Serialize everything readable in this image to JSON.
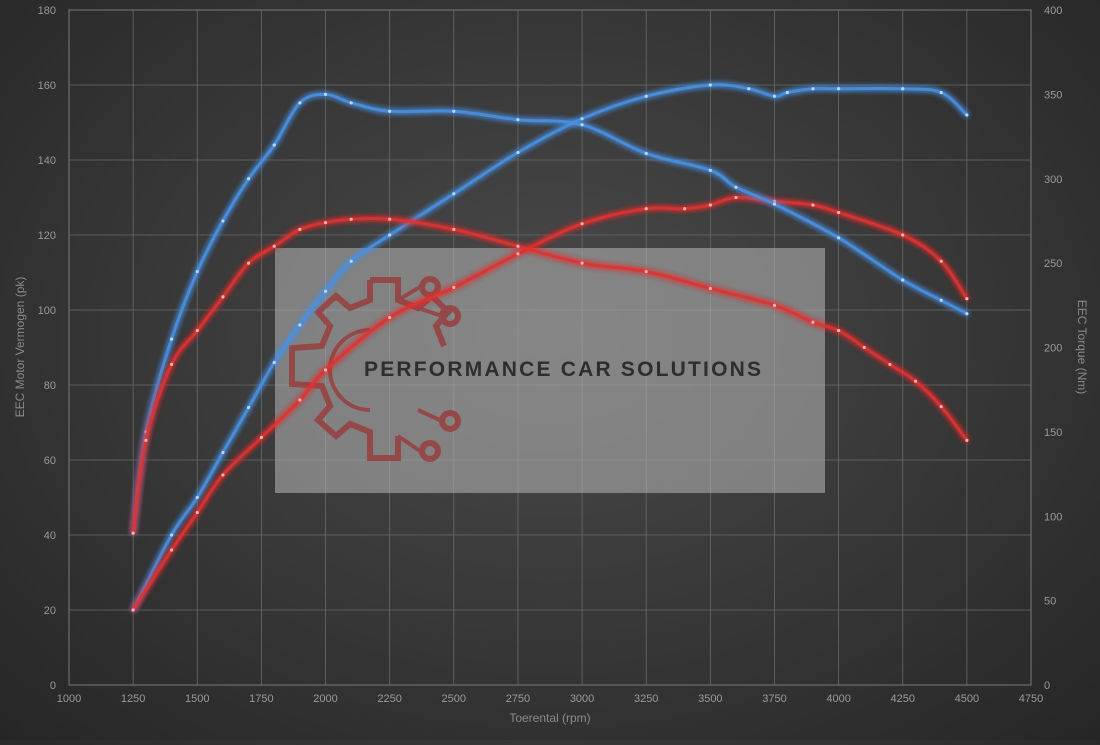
{
  "chart_data": {
    "type": "line",
    "xlabel": "Toerental (rpm)",
    "ylabel_left": "EEC Motor Vermogen (pk)",
    "ylabel_right": "EEC Torque (Nm)",
    "xlim": [
      1000,
      4750
    ],
    "ylim_left": [
      0,
      180
    ],
    "ylim_right": [
      0,
      400
    ],
    "x_ticks": [
      1000,
      1250,
      1500,
      1750,
      2000,
      2250,
      2500,
      2750,
      3000,
      3250,
      3500,
      3750,
      4000,
      4250,
      4500,
      4750
    ],
    "y_left_ticks": [
      0,
      20,
      40,
      60,
      80,
      100,
      120,
      140,
      160,
      180
    ],
    "y_right_ticks": [
      0,
      50,
      100,
      150,
      200,
      250,
      300,
      350,
      400
    ],
    "grid": true,
    "series": [
      {
        "color": "#4a90e2",
        "axis": "left",
        "x": [
          1250,
          1400,
          1500,
          1600,
          1700,
          1800,
          1900,
          2000,
          2100,
          2250,
          2500,
          2750,
          3000,
          3250,
          3500,
          3650,
          3750,
          3800,
          3900,
          4000,
          4250,
          4400,
          4500
        ],
        "values": [
          20,
          40,
          50,
          62,
          74,
          86,
          96,
          105,
          113,
          120,
          131,
          142,
          151,
          157,
          160,
          159,
          157,
          158,
          159,
          159,
          159,
          158,
          152
        ]
      },
      {
        "color": "#e03030",
        "axis": "left",
        "x": [
          1250,
          1400,
          1500,
          1600,
          1750,
          1900,
          2000,
          2250,
          2500,
          2750,
          3000,
          3250,
          3400,
          3500,
          3600,
          3750,
          3900,
          4000,
          4250,
          4400,
          4500
        ],
        "values": [
          20,
          36,
          46,
          56,
          66,
          76,
          84,
          98,
          106,
          115,
          123,
          127,
          127,
          128,
          130,
          129,
          128,
          126,
          120,
          113,
          103
        ]
      },
      {
        "color": "#4a90e2",
        "axis": "right",
        "x": [
          1250,
          1300,
          1400,
          1500,
          1600,
          1700,
          1800,
          1900,
          2000,
          2100,
          2250,
          2500,
          2750,
          3000,
          3250,
          3500,
          3600,
          3750,
          4000,
          4250,
          4400,
          4500
        ],
        "values": [
          90,
          150,
          205,
          245,
          275,
          300,
          320,
          345,
          350,
          345,
          340,
          340,
          335,
          332,
          315,
          305,
          295,
          285,
          265,
          240,
          228,
          220
        ]
      },
      {
        "color": "#e03030",
        "axis": "right",
        "x": [
          1250,
          1300,
          1400,
          1500,
          1600,
          1700,
          1800,
          1900,
          2000,
          2100,
          2250,
          2500,
          2750,
          3000,
          3250,
          3500,
          3750,
          3900,
          4000,
          4100,
          4200,
          4300,
          4400,
          4500
        ],
        "values": [
          90,
          145,
          190,
          210,
          230,
          250,
          260,
          270,
          274,
          276,
          276,
          270,
          260,
          250,
          245,
          235,
          225,
          215,
          210,
          200,
          190,
          180,
          165,
          145
        ]
      }
    ]
  },
  "watermark": {
    "text": "PERFORMANCE CAR SOLUTIONS",
    "logo_icon": "gear-circuit-logo-icon"
  }
}
